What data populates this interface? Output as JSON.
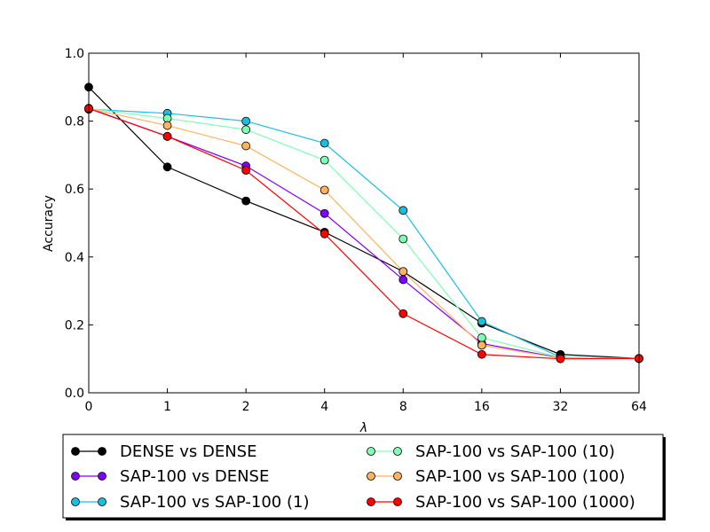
{
  "chart_data": {
    "type": "line",
    "xlabel": "λ",
    "ylabel": "Accuracy",
    "x": [
      "0",
      "1",
      "2",
      "4",
      "8",
      "16",
      "32",
      "64"
    ],
    "ylim": [
      0.0,
      1.0
    ],
    "yticks": [
      "0.0",
      "0.2",
      "0.4",
      "0.6",
      "0.8",
      "1.0"
    ],
    "grid": false,
    "legend_position": "bottom",
    "series": [
      {
        "name": "DENSE vs DENSE",
        "color": "#000000",
        "values": [
          0.9,
          0.665,
          0.565,
          0.473,
          0.357,
          0.205,
          0.113,
          0.101
        ]
      },
      {
        "name": "SAP-100 vs DENSE",
        "color": "#8000ff",
        "values": [
          0.838,
          0.755,
          0.668,
          0.528,
          0.333,
          0.145,
          0.103,
          0.101
        ]
      },
      {
        "name": "SAP-100 vs SAP-100 (1)",
        "color": "#19bfe3",
        "values": [
          0.835,
          0.823,
          0.8,
          0.735,
          0.537,
          0.21,
          0.105,
          0.101
        ]
      },
      {
        "name": "SAP-100 vs SAP-100 (10)",
        "color": "#80ffb4",
        "values": [
          0.837,
          0.808,
          0.775,
          0.685,
          0.453,
          0.162,
          0.104,
          0.101
        ]
      },
      {
        "name": "SAP-100 vs SAP-100 (100)",
        "color": "#ffb260",
        "values": [
          0.837,
          0.787,
          0.727,
          0.597,
          0.357,
          0.14,
          0.102,
          0.101
        ]
      },
      {
        "name": "SAP-100 vs SAP-100 (1000)",
        "color": "#ff0000",
        "values": [
          0.837,
          0.755,
          0.655,
          0.468,
          0.233,
          0.113,
          0.1,
          0.101
        ]
      }
    ]
  }
}
